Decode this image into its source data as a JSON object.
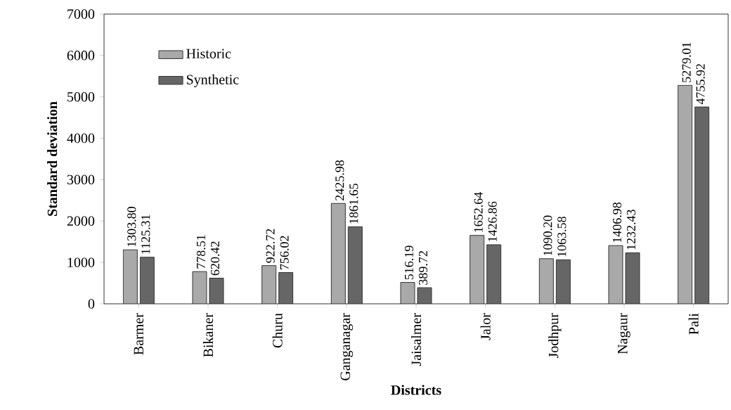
{
  "chart_data": {
    "type": "bar",
    "xlabel": "Districts",
    "ylabel": "Standard deviation",
    "categories": [
      "Barmer",
      "Bikaner",
      "Churu",
      "Ganganagar",
      "Jaisalmer",
      "Jalor",
      "Jodhpur",
      "Nagaur",
      "Pali"
    ],
    "series": [
      {
        "name": "Historic",
        "color": "#a9a9a9",
        "values": [
          1303.8,
          778.51,
          922.72,
          2425.98,
          516.19,
          1652.64,
          1090.2,
          1406.98,
          5279.01
        ],
        "value_labels": [
          "1303.80",
          "778.51",
          "922.72",
          "2425.98",
          "516.19",
          "1652.64",
          "1090.20",
          "1406.98",
          "5279.01"
        ]
      },
      {
        "name": "Synthetic",
        "color": "#666666",
        "values": [
          1125.31,
          620.42,
          756.02,
          1861.65,
          389.72,
          1426.86,
          1063.58,
          1232.43,
          4755.92
        ],
        "value_labels": [
          "1125.31",
          "620.42",
          "756.02",
          "1861.65",
          "389.72",
          "1426.86",
          "1063.58",
          "1232.43",
          "4755.92"
        ]
      }
    ],
    "ylim": [
      0,
      7000
    ],
    "yticks": [
      0,
      1000,
      2000,
      3000,
      4000,
      5000,
      6000,
      7000
    ],
    "grid": false,
    "legend": "top left"
  }
}
